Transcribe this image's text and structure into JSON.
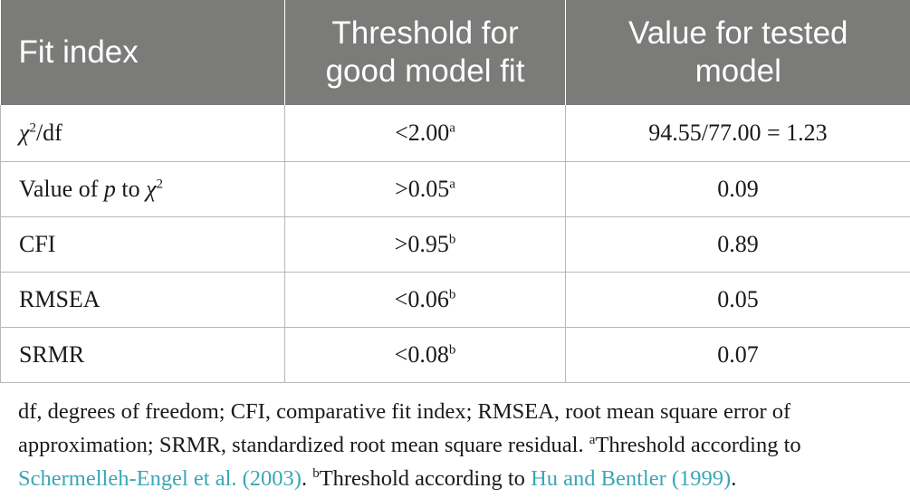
{
  "table": {
    "headers": [
      {
        "line1": "Fit index",
        "line2": ""
      },
      {
        "line1": "Threshold for",
        "line2": "good model fit"
      },
      {
        "line1": "Value for tested",
        "line2": "model"
      }
    ],
    "rows": [
      {
        "index_symbol": "χ",
        "index_sup": "2",
        "index_rest": "/df",
        "threshold": "<2.00",
        "threshold_sup": "a",
        "value": "94.55/77.00 = 1.23"
      },
      {
        "index_text": "Value of ",
        "index_p": "p",
        "index_to": " to ",
        "index_symbol": "χ",
        "index_sup": "2",
        "threshold": ">0.05",
        "threshold_sup": "a",
        "value": "0.09"
      },
      {
        "index": "CFI",
        "threshold": ">0.95",
        "threshold_sup": "b",
        "value": "0.89"
      },
      {
        "index": "RMSEA",
        "threshold": "<0.06",
        "threshold_sup": "b",
        "value": "0.05"
      },
      {
        "index": "SRMR",
        "threshold": "<0.08",
        "threshold_sup": "b",
        "value": "0.07"
      }
    ]
  },
  "footnote": {
    "line1": "df, degrees of freedom; CFI, comparative fit index; RMSEA, root mean square error of",
    "line2": "approximation; SRMR, standardized root mean square residual. ",
    "sup_a": "a",
    "text_a": "Threshold according to",
    "link_a": "Schermelleh-Engel et al. (2003)",
    "sep": ". ",
    "sup_b": "b",
    "text_b": "Threshold according to ",
    "link_b": "Hu and Bentler (1999)",
    "end": "."
  },
  "colors": {
    "header_bg": "#7b7b7a",
    "link": "#3aa6b7",
    "rule": "#b8b8b8"
  }
}
